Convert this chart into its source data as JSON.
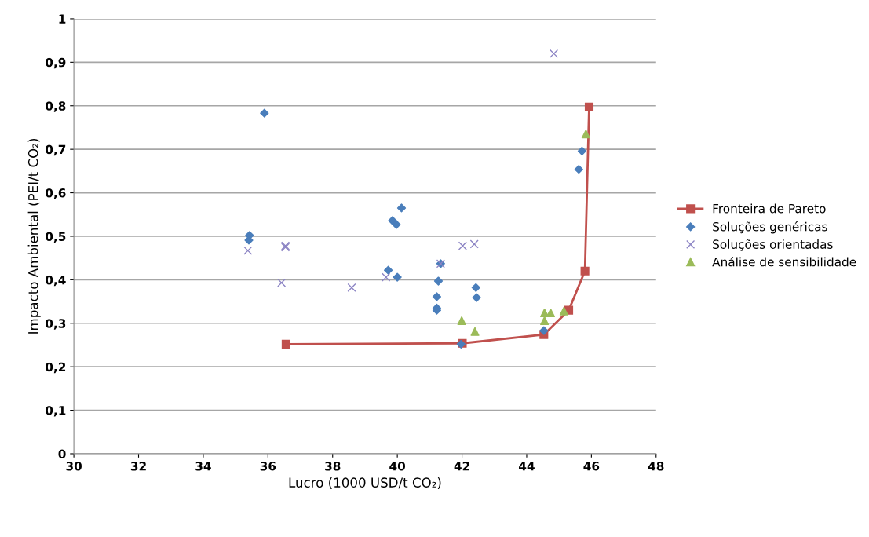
{
  "chart_data": {
    "type": "scatter",
    "xlabel": "Lucro (1000 USD/t CO₂)",
    "ylabel": "Impacto Ambiental (PEI/t CO₂)",
    "xlim": [
      30,
      48
    ],
    "xticks": [
      30,
      32,
      34,
      36,
      38,
      40,
      42,
      44,
      46,
      48
    ],
    "ylim": [
      0,
      1
    ],
    "yticks": [
      0,
      {
        "value": 0.1,
        "label": "0,1"
      },
      {
        "value": 0.2,
        "label": "0,2"
      },
      {
        "value": 0.3,
        "label": "0,3"
      },
      {
        "value": 0.4,
        "label": "0,4"
      },
      {
        "value": 0.5,
        "label": "0,5"
      },
      {
        "value": 0.6,
        "label": "0,6"
      },
      {
        "value": 0.7,
        "label": "0,7"
      },
      {
        "value": 0.8,
        "label": "0,8"
      },
      {
        "value": 0.9,
        "label": "0,9"
      },
      1
    ],
    "grid": "y",
    "legend": "right",
    "series": [
      {
        "name": "Fronteira de Pareto",
        "type": "line",
        "marker": "square",
        "line_style": "solid",
        "color": "#c0504d",
        "x": [
          36.56,
          42.01,
          44.53,
          45.3,
          45.8,
          45.93
        ],
        "values": [
          0.252,
          0.254,
          0.274,
          0.33,
          0.42,
          0.797
        ]
      },
      {
        "name": "Soluções genéricas",
        "marker": "diamond",
        "color": "#4a7ebb",
        "x": [
          35.89,
          35.43,
          35.41,
          39.85,
          39.97,
          40.13,
          39.72,
          40.0,
          41.34,
          41.27,
          41.22,
          41.22,
          41.22,
          42.43,
          42.45,
          41.97,
          45.71,
          45.61,
          44.53
        ],
        "values": [
          0.783,
          0.502,
          0.491,
          0.536,
          0.527,
          0.565,
          0.422,
          0.406,
          0.437,
          0.397,
          0.361,
          0.335,
          0.33,
          0.382,
          0.359,
          0.252,
          0.696,
          0.654,
          0.283
        ]
      },
      {
        "name": "Soluções orientadas",
        "marker": "cross",
        "color": "#8c84c4",
        "x": [
          35.38,
          36.54,
          36.54,
          36.42,
          38.59,
          39.65,
          41.34,
          42.02,
          42.38,
          44.84
        ],
        "values": [
          0.467,
          0.478,
          0.475,
          0.393,
          0.382,
          0.406,
          0.437,
          0.478,
          0.482,
          0.92
        ]
      },
      {
        "name": "Análise de sensibilidade",
        "marker": "triangle",
        "color": "#9bbb59",
        "x": [
          41.99,
          42.4,
          45.83,
          44.55,
          44.74,
          44.55,
          45.15
        ],
        "values": [
          0.306,
          0.281,
          0.735,
          0.324,
          0.324,
          0.306,
          0.328
        ]
      }
    ]
  }
}
